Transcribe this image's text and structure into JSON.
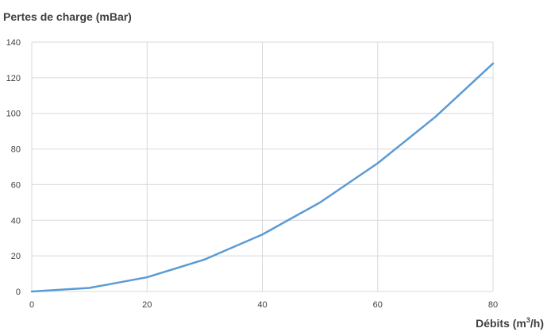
{
  "chart_data": {
    "type": "line",
    "ylabel": "Pertes de charge (mBar)",
    "xlabel_prefix": "Débits (m",
    "xlabel_sup": "3",
    "xlabel_suffix": "/h)",
    "xlim": [
      0,
      80
    ],
    "ylim": [
      0,
      140
    ],
    "x_ticks": [
      0,
      20,
      40,
      60,
      80
    ],
    "y_ticks": [
      0,
      20,
      40,
      60,
      80,
      100,
      120,
      140
    ],
    "grid": true,
    "series": [
      {
        "color": "#5b9bd5",
        "x": [
          0,
          10,
          20,
          30,
          40,
          50,
          60,
          70,
          80
        ],
        "y": [
          0,
          2,
          8,
          18,
          32,
          50,
          72,
          98,
          128
        ]
      }
    ]
  }
}
